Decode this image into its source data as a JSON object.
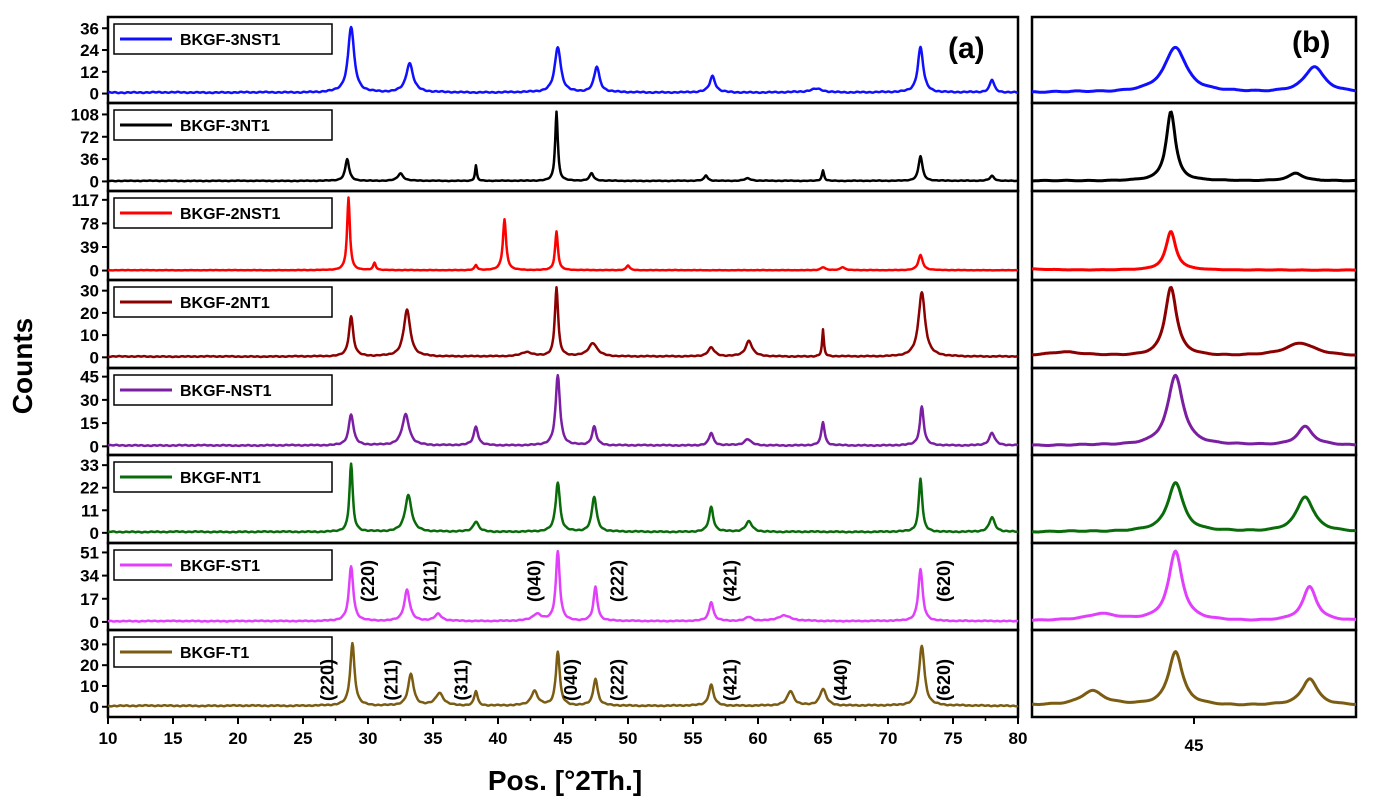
{
  "chart_data": {
    "type": "line",
    "subtype": "stacked XRD patterns",
    "panels": [
      {
        "label": "(a)",
        "xlabel": "Pos. [°2Th.]",
        "ylabel": "Counts",
        "xlim": [
          10,
          80
        ],
        "xticks": [
          "10",
          "15",
          "20",
          "25",
          "30",
          "35",
          "40",
          "45",
          "50",
          "55",
          "60",
          "65",
          "70",
          "75",
          "80"
        ]
      },
      {
        "label": "(b)",
        "xlim": [
          41.5,
          48.5
        ],
        "xticks": [
          "45"
        ]
      }
    ],
    "series": [
      {
        "name": "BKGF-3NST1",
        "color": "#1010ff",
        "baseline": 0,
        "ylim": [
          -3,
          40
        ],
        "yticks": [
          "0",
          "12",
          "24",
          "36"
        ],
        "noise": 1.0,
        "peaks": [
          [
            28.7,
            36,
            0.28
          ],
          [
            33.2,
            16,
            0.32
          ],
          [
            44.6,
            25,
            0.28
          ],
          [
            47.6,
            14,
            0.25
          ],
          [
            56.5,
            9,
            0.25
          ],
          [
            72.5,
            25,
            0.25
          ],
          [
            78.0,
            7,
            0.2
          ],
          [
            64.5,
            2,
            0.6
          ]
        ]
      },
      {
        "name": "BKGF-3NT1",
        "color": "#000000",
        "baseline": 0,
        "ylim": [
          -9,
          120
        ],
        "yticks": [
          "0",
          "36",
          "72",
          "108"
        ],
        "noise": 1.5,
        "peaks": [
          [
            28.4,
            35,
            0.18
          ],
          [
            32.5,
            12,
            0.25
          ],
          [
            38.3,
            25,
            0.08
          ],
          [
            44.5,
            112,
            0.12
          ],
          [
            47.2,
            12,
            0.18
          ],
          [
            56.0,
            9,
            0.15
          ],
          [
            59.2,
            4,
            0.3
          ],
          [
            65.0,
            17,
            0.1
          ],
          [
            72.5,
            40,
            0.18
          ],
          [
            78.0,
            8,
            0.2
          ]
        ]
      },
      {
        "name": "BKGF-2NST1",
        "color": "#ff0000",
        "baseline": 0,
        "ylim": [
          -9,
          125
        ],
        "yticks": [
          "0",
          "39",
          "78",
          "117"
        ],
        "noise": 1.0,
        "peaks": [
          [
            28.5,
            120,
            0.13
          ],
          [
            30.5,
            12,
            0.12
          ],
          [
            38.3,
            8,
            0.12
          ],
          [
            40.5,
            84,
            0.15
          ],
          [
            44.5,
            64,
            0.13
          ],
          [
            50.0,
            8,
            0.15
          ],
          [
            65.0,
            5,
            0.2
          ],
          [
            66.5,
            5,
            0.2
          ],
          [
            72.5,
            25,
            0.2
          ]
        ]
      },
      {
        "name": "BKGF-2NT1",
        "color": "#8b0000",
        "baseline": 0,
        "ylim": [
          -3,
          33
        ],
        "yticks": [
          "0",
          "10",
          "20",
          "30"
        ],
        "noise": 0.6,
        "peaks": [
          [
            28.7,
            18,
            0.2
          ],
          [
            33.0,
            21,
            0.3
          ],
          [
            42.2,
            2,
            0.5
          ],
          [
            44.5,
            31,
            0.15
          ],
          [
            47.3,
            6,
            0.4
          ],
          [
            56.4,
            4,
            0.3
          ],
          [
            59.3,
            7,
            0.3
          ],
          [
            65.0,
            12,
            0.08
          ],
          [
            72.6,
            29,
            0.3
          ]
        ]
      },
      {
        "name": "BKGF-NST1",
        "color": "#7b1fa2",
        "baseline": 0,
        "ylim": [
          -3,
          48
        ],
        "yticks": [
          "0",
          "15",
          "30",
          "45"
        ],
        "noise": 1.0,
        "peaks": [
          [
            28.7,
            20,
            0.22
          ],
          [
            32.9,
            20,
            0.32
          ],
          [
            38.3,
            12,
            0.2
          ],
          [
            44.6,
            45,
            0.2
          ],
          [
            47.4,
            12,
            0.2
          ],
          [
            56.4,
            8,
            0.2
          ],
          [
            59.2,
            4,
            0.3
          ],
          [
            65.0,
            15,
            0.15
          ],
          [
            72.6,
            25,
            0.18
          ],
          [
            78.0,
            8,
            0.25
          ]
        ]
      },
      {
        "name": "BKGF-NT1",
        "color": "#0a6b0a",
        "baseline": 0,
        "ylim": [
          -3,
          36
        ],
        "yticks": [
          "0",
          "11",
          "22",
          "33"
        ],
        "noise": 0.8,
        "peaks": [
          [
            28.7,
            33,
            0.15
          ],
          [
            33.1,
            18,
            0.3
          ],
          [
            38.3,
            5,
            0.25
          ],
          [
            44.6,
            24,
            0.2
          ],
          [
            47.4,
            17,
            0.22
          ],
          [
            56.4,
            12,
            0.2
          ],
          [
            59.3,
            5,
            0.3
          ],
          [
            72.5,
            26,
            0.16
          ],
          [
            78.0,
            7,
            0.25
          ]
        ]
      },
      {
        "name": "BKGF-ST1",
        "color": "#e040fb",
        "baseline": 0,
        "ylim": [
          -3,
          55
        ],
        "yticks": [
          "0",
          "17",
          "34",
          "51"
        ],
        "noise": 1.0,
        "peaks": [
          [
            28.7,
            40,
            0.2
          ],
          [
            33.0,
            23,
            0.25
          ],
          [
            35.4,
            5,
            0.3
          ],
          [
            43.0,
            5,
            0.4
          ],
          [
            44.6,
            51,
            0.18
          ],
          [
            47.5,
            25,
            0.18
          ],
          [
            56.4,
            14,
            0.2
          ],
          [
            59.3,
            3,
            0.3
          ],
          [
            62.0,
            4,
            0.6
          ],
          [
            72.5,
            38,
            0.2
          ]
        ]
      },
      {
        "name": "BKGF-T1",
        "color": "#7a5c12",
        "baseline": 0,
        "ylim": [
          -3,
          35
        ],
        "yticks": [
          "0",
          "10",
          "20",
          "30"
        ],
        "noise": 0.8,
        "peaks": [
          [
            28.8,
            30,
            0.2
          ],
          [
            33.3,
            15,
            0.25
          ],
          [
            35.5,
            6,
            0.35
          ],
          [
            38.3,
            7,
            0.15
          ],
          [
            42.8,
            7,
            0.3
          ],
          [
            44.6,
            26,
            0.18
          ],
          [
            47.5,
            13,
            0.2
          ],
          [
            56.4,
            10,
            0.22
          ],
          [
            62.5,
            7,
            0.3
          ],
          [
            65.0,
            8,
            0.3
          ],
          [
            72.6,
            29,
            0.25
          ]
        ]
      }
    ],
    "annotations": [
      {
        "series": "BKGF-ST1",
        "items": [
          {
            "text": "(220)",
            "x": 30.0
          },
          {
            "text": "(211)",
            "x": 34.8
          },
          {
            "text": "(040)",
            "x": 42.8
          },
          {
            "text": "(222)",
            "x": 49.2
          },
          {
            "text": "(421)",
            "x": 57.9
          },
          {
            "text": "(620)",
            "x": 74.3
          }
        ]
      },
      {
        "series": "BKGF-T1",
        "items": [
          {
            "text": "(220)",
            "x": 26.9
          },
          {
            "text": "(211)",
            "x": 31.8
          },
          {
            "text": "(311)",
            "x": 37.2
          },
          {
            "text": "(040)",
            "x": 45.6
          },
          {
            "text": "(222)",
            "x": 49.2
          },
          {
            "text": "(421)",
            "x": 57.9
          },
          {
            "text": "(440)",
            "x": 66.4
          },
          {
            "text": "(620)",
            "x": 74.3
          }
        ]
      }
    ]
  }
}
